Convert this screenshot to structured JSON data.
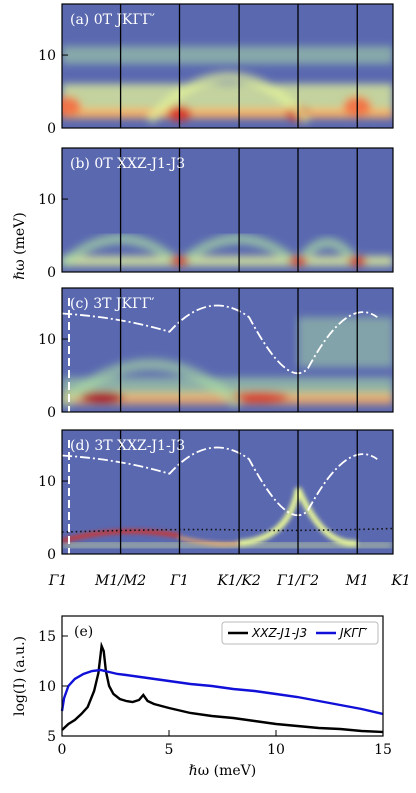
{
  "chart_data": [
    {
      "type": "heatmap",
      "panels": [
        {
          "label": "(a) 0T JKΓΓ′",
          "yticks": [
            0,
            10
          ],
          "ylim": [
            0,
            17
          ]
        },
        {
          "label": "(b) 0T XXZ-J1-J3",
          "yticks": [
            0,
            10
          ],
          "ylim": [
            0,
            17
          ]
        },
        {
          "label": "(c) 3T JKΓΓ′",
          "yticks": [
            0,
            10
          ],
          "ylim": [
            0,
            17
          ]
        },
        {
          "label": "(d) 3T XXZ-J1-J3",
          "yticks": [
            0,
            10
          ],
          "ylim": [
            0,
            17
          ]
        }
      ],
      "ylabel": "ℏω (meV)",
      "x_ticklabels": [
        "Γ1",
        "M1/M2",
        "Γ1",
        "K1/K2",
        "Γ1/Γ2",
        "M1",
        "K1"
      ],
      "colormap": [
        "#3b4cc0",
        "#2c7bb6",
        "#6abfa4",
        "#abdda4",
        "#e6f598",
        "#fee08b",
        "#fdae61",
        "#f46d43",
        "#d73027",
        "#a50026"
      ]
    },
    {
      "type": "line",
      "label": "(e)",
      "xlabel": "ℏω (meV)",
      "ylabel": "log(I) (a.u.)",
      "xlim": [
        0,
        15
      ],
      "ylim": [
        5,
        17
      ],
      "xticks": [
        0,
        5,
        10,
        15
      ],
      "yticks": [
        5,
        10,
        15
      ],
      "legend_position": "top-right",
      "series": [
        {
          "name": "XXZ-J1-J3",
          "color": "#000000",
          "x": [
            0,
            0.3,
            0.6,
            0.9,
            1.2,
            1.5,
            1.7,
            1.85,
            1.95,
            2.05,
            2.2,
            2.4,
            2.7,
            3.0,
            3.3,
            3.6,
            3.8,
            4.0,
            4.3,
            5,
            6,
            7,
            8,
            9,
            10,
            11,
            12,
            13,
            14,
            15
          ],
          "y": [
            5.6,
            6.2,
            6.6,
            7.2,
            7.9,
            9.5,
            11.3,
            14.0,
            13.5,
            11.5,
            10.0,
            9.2,
            8.7,
            8.5,
            8.4,
            8.6,
            9.1,
            8.5,
            8.2,
            7.8,
            7.3,
            7.0,
            6.8,
            6.5,
            6.2,
            6.0,
            5.8,
            5.7,
            5.5,
            5.4
          ]
        },
        {
          "name": "JKΓΓ′",
          "color": "#1010d8",
          "x": [
            0,
            0.1,
            0.3,
            0.6,
            1.0,
            1.4,
            1.8,
            2.2,
            2.6,
            3.0,
            4,
            5,
            6,
            7,
            8,
            9,
            10,
            11,
            12,
            13,
            14,
            15
          ],
          "y": [
            7.5,
            8.8,
            10.0,
            10.7,
            11.2,
            11.5,
            11.6,
            11.4,
            11.2,
            11.1,
            10.8,
            10.5,
            10.2,
            10.0,
            9.7,
            9.5,
            9.2,
            8.9,
            8.5,
            8.1,
            7.7,
            7.2
          ]
        }
      ]
    }
  ]
}
